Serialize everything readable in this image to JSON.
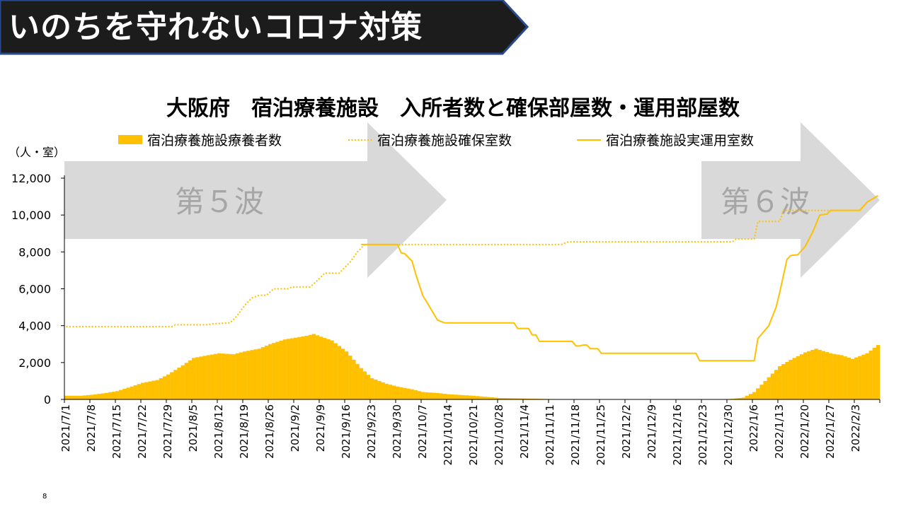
{
  "header": {
    "title": "いのちを守れないコロナ対策"
  },
  "footer": {
    "slide_number": "8"
  },
  "colors": {
    "banner_bg": "#1c1c1c",
    "banner_border": "#2a4a8c",
    "series": "#ffc000",
    "wave_arrow": "#d9d9d9",
    "wave_text": "#a6a6a6"
  },
  "chart_data": {
    "type": "bar+line",
    "title": "大阪府　宿泊療養施設　入所者数と確保部屋数・運用部屋数",
    "unit_label": "（人・室）",
    "ylim": [
      0,
      12000
    ],
    "yticks": [
      "0",
      "2,000",
      "4,000",
      "6,000",
      "8,000",
      "10,000",
      "12,000"
    ],
    "ytick_values": [
      0,
      2000,
      4000,
      6000,
      8000,
      10000,
      12000
    ],
    "grid": false,
    "legend_position": "top",
    "x_start": "2021-07-01",
    "x_end": "2022-02-09",
    "xtick_labels": [
      "2021/7/1",
      "2021/7/8",
      "2021/7/15",
      "2021/7/22",
      "2021/7/29",
      "2021/8/5",
      "2021/8/12",
      "2021/8/19",
      "2021/8/26",
      "2021/9/2",
      "2021/9/9",
      "2021/9/16",
      "2021/9/23",
      "2021/9/30",
      "2021/10/7",
      "2021/10/14",
      "2021/10/21",
      "2021/10/28",
      "2021/11/4",
      "2021/11/11",
      "2021/11/18",
      "2021/11/25",
      "2021/12/2",
      "2021/12/9",
      "2021/12/16",
      "2021/12/23",
      "2021/12/30",
      "2022/1/6",
      "2022/1/13",
      "2022/1/20",
      "2022/1/27",
      "2022/2/3"
    ],
    "waves": [
      {
        "label": "第５波",
        "from": "2021-07-01",
        "to": "2021-10-14"
      },
      {
        "label": "第６波",
        "from": "2021-12-23",
        "to": "2022-02-10"
      }
    ],
    "series": [
      {
        "name": "宿泊療養施設療養者数",
        "kind": "bar",
        "style": "solid",
        "points": [
          [
            "2021-07-01",
            200
          ],
          [
            "2021-07-05",
            200
          ],
          [
            "2021-07-08",
            250
          ],
          [
            "2021-07-12",
            350
          ],
          [
            "2021-07-15",
            450
          ],
          [
            "2021-07-19",
            700
          ],
          [
            "2021-07-22",
            900
          ],
          [
            "2021-07-26",
            1050
          ],
          [
            "2021-07-29",
            1350
          ],
          [
            "2021-08-02",
            1850
          ],
          [
            "2021-08-05",
            2250
          ],
          [
            "2021-08-09",
            2400
          ],
          [
            "2021-08-12",
            2500
          ],
          [
            "2021-08-16",
            2450
          ],
          [
            "2021-08-19",
            2600
          ],
          [
            "2021-08-23",
            2750
          ],
          [
            "2021-08-26",
            3000
          ],
          [
            "2021-08-30",
            3250
          ],
          [
            "2021-09-02",
            3350
          ],
          [
            "2021-09-05",
            3450
          ],
          [
            "2021-09-07",
            3550
          ],
          [
            "2021-09-09",
            3400
          ],
          [
            "2021-09-12",
            3200
          ],
          [
            "2021-09-16",
            2600
          ],
          [
            "2021-09-20",
            1700
          ],
          [
            "2021-09-23",
            1150
          ],
          [
            "2021-09-27",
            850
          ],
          [
            "2021-09-30",
            700
          ],
          [
            "2021-10-04",
            550
          ],
          [
            "2021-10-07",
            400
          ],
          [
            "2021-10-11",
            350
          ],
          [
            "2021-10-14",
            280
          ],
          [
            "2021-10-21",
            200
          ],
          [
            "2021-10-28",
            80
          ],
          [
            "2021-11-04",
            50
          ],
          [
            "2021-11-11",
            20
          ],
          [
            "2021-11-18",
            10
          ],
          [
            "2021-12-30",
            10
          ],
          [
            "2022-01-03",
            100
          ],
          [
            "2022-01-06",
            400
          ],
          [
            "2022-01-09",
            1000
          ],
          [
            "2022-01-13",
            1800
          ],
          [
            "2022-01-16",
            2150
          ],
          [
            "2022-01-20",
            2550
          ],
          [
            "2022-01-23",
            2750
          ],
          [
            "2022-01-27",
            2500
          ],
          [
            "2022-01-30",
            2400
          ],
          [
            "2022-02-02",
            2200
          ],
          [
            "2022-02-06",
            2500
          ],
          [
            "2022-02-09",
            2950
          ]
        ]
      },
      {
        "name": "宿泊療養施設確保室数",
        "kind": "line",
        "style": "dotted",
        "points": [
          [
            "2021-07-01",
            3950
          ],
          [
            "2021-07-30",
            3950
          ],
          [
            "2021-07-31",
            4050
          ],
          [
            "2021-08-09",
            4050
          ],
          [
            "2021-08-10",
            4100
          ],
          [
            "2021-08-15",
            4150
          ],
          [
            "2021-08-17",
            4550
          ],
          [
            "2021-08-19",
            5100
          ],
          [
            "2021-08-21",
            5500
          ],
          [
            "2021-08-23",
            5650
          ],
          [
            "2021-08-25",
            5650
          ],
          [
            "2021-08-27",
            6000
          ],
          [
            "2021-08-31",
            6000
          ],
          [
            "2021-09-01",
            6100
          ],
          [
            "2021-09-06",
            6100
          ],
          [
            "2021-09-08",
            6450
          ],
          [
            "2021-09-10",
            6850
          ],
          [
            "2021-09-14",
            6850
          ],
          [
            "2021-09-17",
            7450
          ],
          [
            "2021-09-19",
            8000
          ],
          [
            "2021-09-21",
            8400
          ],
          [
            "2021-11-14",
            8400
          ],
          [
            "2021-11-16",
            8550
          ],
          [
            "2021-12-31",
            8550
          ],
          [
            "2022-01-01",
            8700
          ],
          [
            "2022-01-06",
            8700
          ],
          [
            "2022-01-07",
            9650
          ],
          [
            "2022-01-13",
            9650
          ],
          [
            "2022-01-14",
            10250
          ],
          [
            "2022-02-04",
            10250
          ],
          [
            "2022-02-06",
            10700
          ],
          [
            "2022-02-09",
            11050
          ]
        ]
      },
      {
        "name": "宿泊療養施設実運用室数",
        "kind": "line",
        "style": "solid",
        "points": [
          [
            "2021-07-01",
            null
          ],
          [
            "2021-09-20",
            8400
          ],
          [
            "2021-09-30",
            8400
          ],
          [
            "2021-10-01",
            7950
          ],
          [
            "2021-10-02",
            7900
          ],
          [
            "2021-10-04",
            7500
          ],
          [
            "2021-10-05",
            6800
          ],
          [
            "2021-10-07",
            5600
          ],
          [
            "2021-10-08",
            5300
          ],
          [
            "2021-10-11",
            4300
          ],
          [
            "2021-10-13",
            4150
          ],
          [
            "2021-11-01",
            4150
          ],
          [
            "2021-11-02",
            3850
          ],
          [
            "2021-11-05",
            3850
          ],
          [
            "2021-11-06",
            3500
          ],
          [
            "2021-11-07",
            3500
          ],
          [
            "2021-11-08",
            3150
          ],
          [
            "2021-11-17",
            3150
          ],
          [
            "2021-11-18",
            2900
          ],
          [
            "2021-11-19",
            2900
          ],
          [
            "2021-11-20",
            2950
          ],
          [
            "2021-11-21",
            2950
          ],
          [
            "2021-11-22",
            2750
          ],
          [
            "2021-11-24",
            2750
          ],
          [
            "2021-11-25",
            2500
          ],
          [
            "2021-12-21",
            2500
          ],
          [
            "2021-12-22",
            2100
          ],
          [
            "2022-01-06",
            2100
          ],
          [
            "2022-01-07",
            3300
          ],
          [
            "2022-01-10",
            4000
          ],
          [
            "2022-01-12",
            5000
          ],
          [
            "2022-01-13",
            5800
          ],
          [
            "2022-01-15",
            7600
          ],
          [
            "2022-01-16",
            7800
          ],
          [
            "2022-01-18",
            7850
          ],
          [
            "2022-01-20",
            8300
          ],
          [
            "2022-01-22",
            9050
          ],
          [
            "2022-01-24",
            10000
          ],
          [
            "2022-01-26",
            10050
          ],
          [
            "2022-01-27",
            10250
          ],
          [
            "2022-02-04",
            10250
          ],
          [
            "2022-02-06",
            10700
          ],
          [
            "2022-02-09",
            11050
          ]
        ]
      }
    ]
  }
}
